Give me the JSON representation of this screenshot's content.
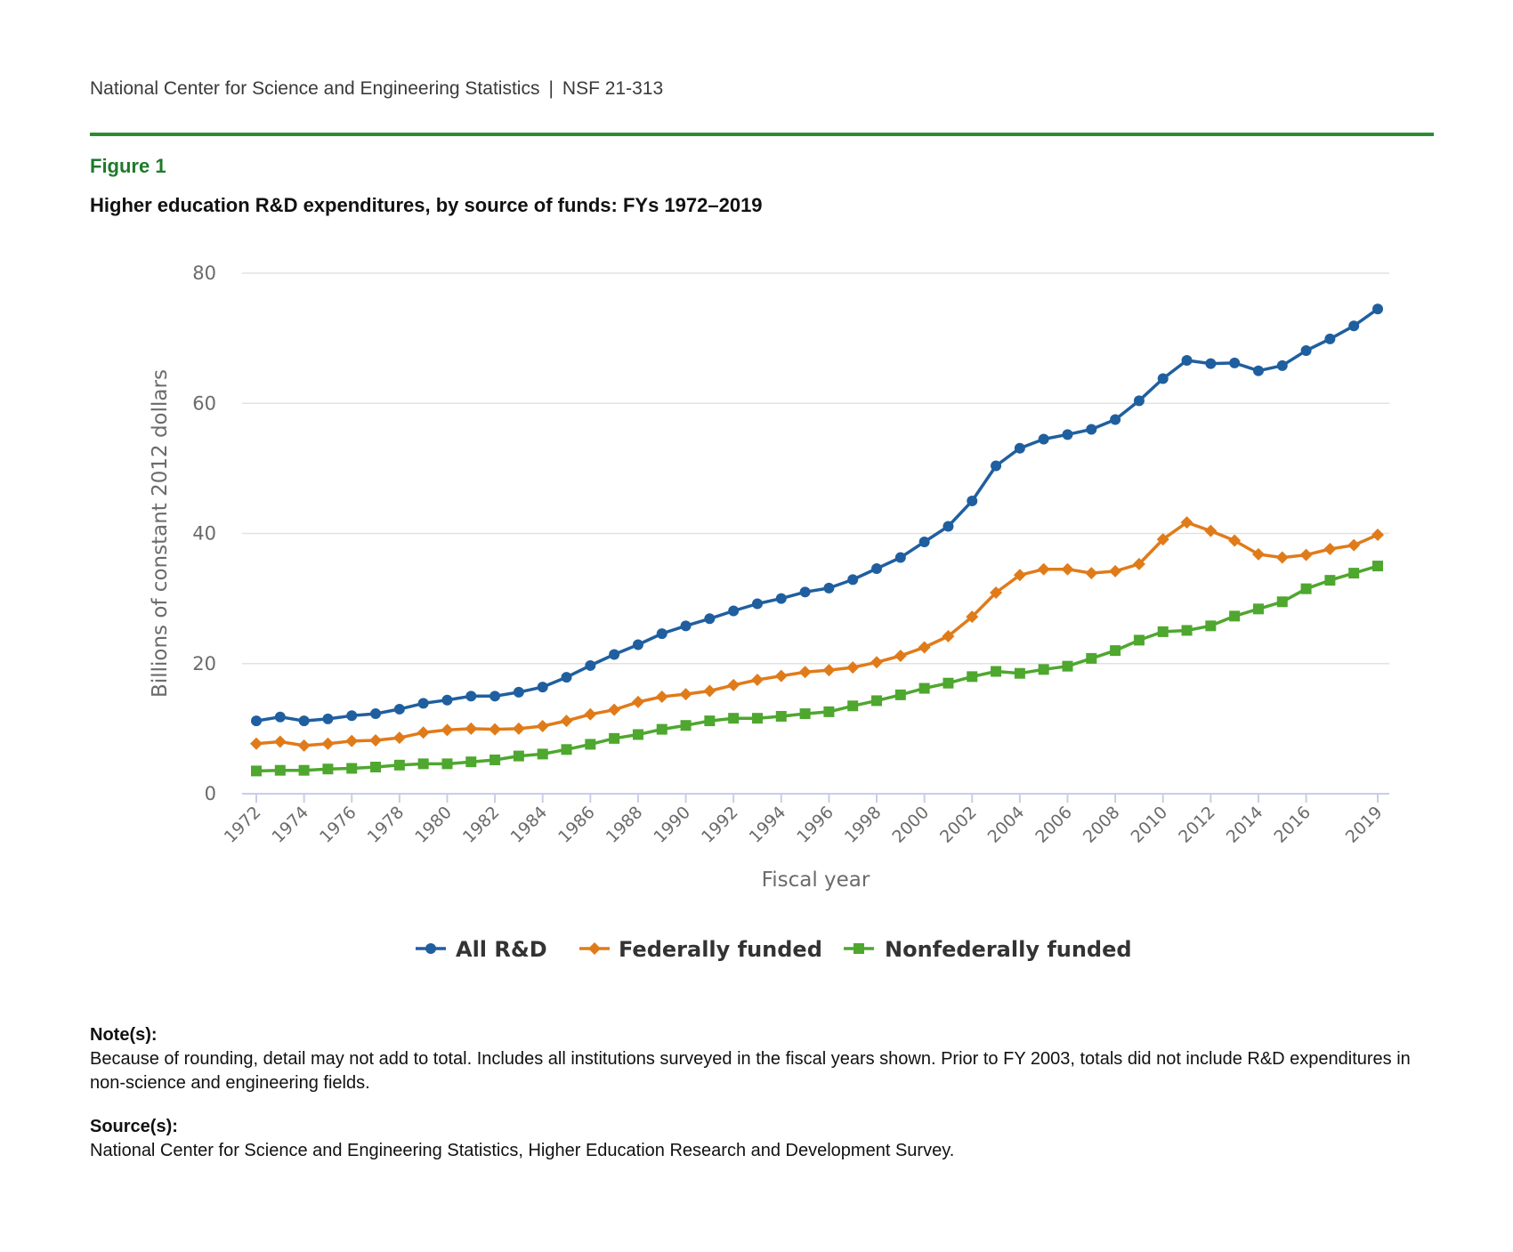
{
  "header": {
    "org": "National Center for Science and Engineering Statistics",
    "separator": "|",
    "report_id": "NSF 21-313"
  },
  "figure": {
    "label": "Figure 1",
    "title": "Higher education R&D expenditures, by source of funds: FYs 1972–2019"
  },
  "colors": {
    "rule": "#2e8b34",
    "figure_label": "#1f7a2c",
    "all_rd": "#1f5f9f",
    "federal": "#e07b1a",
    "nonfederal": "#4ea72e",
    "grid": "#e2e2e2",
    "axis": "#c9cde6"
  },
  "chart_data": {
    "type": "line",
    "title": "Higher education R&D expenditures, by source of funds: FYs 1972–2019",
    "xlabel": "Fiscal year",
    "ylabel": "Billions of constant 2012 dollars",
    "ylim": [
      0,
      80
    ],
    "yticks": [
      0,
      20,
      40,
      60,
      80
    ],
    "xticks": [
      "1972",
      "1974",
      "1976",
      "1978",
      "1980",
      "1982",
      "1984",
      "1986",
      "1988",
      "1990",
      "1992",
      "1994",
      "1996",
      "1998",
      "2000",
      "2002",
      "2004",
      "2006",
      "2008",
      "2010",
      "2012",
      "2014",
      "2016",
      "2019"
    ],
    "grid": true,
    "legend_position": "bottom-center",
    "x": [
      1972,
      1973,
      1974,
      1975,
      1976,
      1977,
      1978,
      1979,
      1980,
      1981,
      1982,
      1983,
      1984,
      1985,
      1986,
      1987,
      1988,
      1989,
      1990,
      1991,
      1992,
      1993,
      1994,
      1995,
      1996,
      1997,
      1998,
      1999,
      2000,
      2001,
      2002,
      2003,
      2004,
      2005,
      2006,
      2007,
      2008,
      2009,
      2010,
      2011,
      2012,
      2013,
      2014,
      2015,
      2016,
      2017,
      2018,
      2019
    ],
    "series": [
      {
        "name": "All R&D",
        "marker": "circle",
        "values": [
          11.2,
          11.8,
          11.2,
          11.5,
          12.0,
          12.3,
          13.0,
          13.9,
          14.4,
          15.0,
          15.0,
          15.6,
          16.4,
          17.9,
          19.7,
          21.4,
          22.9,
          24.6,
          25.8,
          26.9,
          28.1,
          29.2,
          30.0,
          31.0,
          31.6,
          32.9,
          34.6,
          36.3,
          38.7,
          41.1,
          45.0,
          50.4,
          53.1,
          54.5,
          55.2,
          56.0,
          57.5,
          60.4,
          63.8,
          66.6,
          66.1,
          66.2,
          65.0,
          65.8,
          68.1,
          69.9,
          71.9,
          74.5
        ]
      },
      {
        "name": "Federally funded",
        "marker": "diamond",
        "values": [
          7.7,
          8.0,
          7.4,
          7.7,
          8.1,
          8.2,
          8.6,
          9.4,
          9.8,
          10.0,
          9.9,
          10.0,
          10.4,
          11.2,
          12.2,
          12.9,
          14.1,
          14.9,
          15.3,
          15.8,
          16.7,
          17.5,
          18.1,
          18.7,
          19.0,
          19.4,
          20.2,
          21.2,
          22.5,
          24.2,
          27.2,
          30.9,
          33.6,
          34.5,
          34.5,
          33.9,
          34.2,
          35.3,
          39.1,
          41.7,
          40.4,
          38.9,
          36.8,
          36.3,
          36.7,
          37.6,
          38.2,
          39.8
        ]
      },
      {
        "name": "Nonfederally funded",
        "marker": "square",
        "values": [
          3.5,
          3.6,
          3.6,
          3.8,
          3.9,
          4.1,
          4.4,
          4.6,
          4.6,
          4.9,
          5.2,
          5.8,
          6.1,
          6.8,
          7.6,
          8.5,
          9.1,
          9.9,
          10.5,
          11.2,
          11.6,
          11.6,
          11.9,
          12.3,
          12.6,
          13.5,
          14.3,
          15.2,
          16.2,
          17.0,
          18.0,
          18.8,
          18.5,
          19.1,
          19.6,
          20.8,
          22.0,
          23.6,
          24.9,
          25.1,
          25.8,
          27.3,
          28.4,
          29.5,
          31.5,
          32.8,
          33.9,
          35.0
        ]
      }
    ]
  },
  "notes": {
    "label": "Note(s):",
    "text": "Because of rounding, detail may not add to total. Includes all institutions surveyed in the fiscal years shown. Prior to FY 2003, totals did not include R&D expenditures in non-science and engineering fields."
  },
  "source": {
    "label": "Source(s):",
    "text": "National Center for Science and Engineering Statistics, Higher Education Research and Development Survey."
  }
}
